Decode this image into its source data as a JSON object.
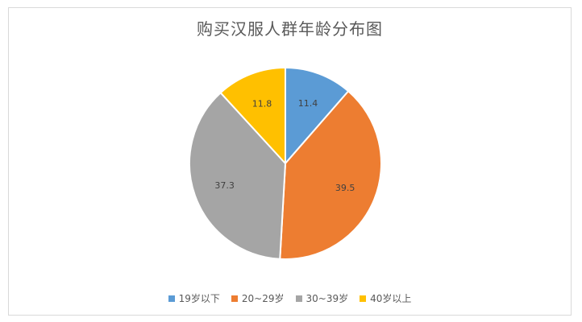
{
  "chart_data": {
    "type": "pie",
    "title": "购买汉服人群年龄分布图",
    "categories": [
      "19岁以下",
      "20~29岁",
      "30~39岁",
      "40岁以上"
    ],
    "values": [
      11.4,
      39.5,
      37.3,
      11.8
    ],
    "colors": [
      "#5B9BD5",
      "#ED7D31",
      "#A5A5A5",
      "#FFC000"
    ],
    "data_labels": [
      "11.4",
      "39.5",
      "37.3",
      "11.8"
    ],
    "legend_position": "bottom",
    "start_angle": "12 o'clock, clockwise"
  }
}
